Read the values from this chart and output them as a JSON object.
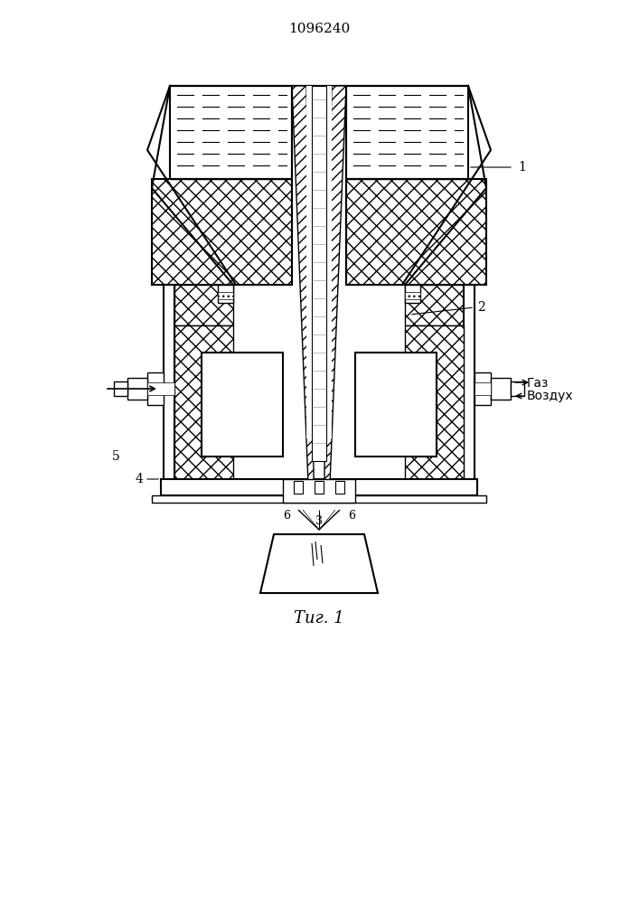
{
  "title": "1096240",
  "fig_label": "Τиг. 1",
  "bg_color": "#ffffff",
  "line_color": "#000000",
  "label_1": "1",
  "label_2": "2",
  "label_3": "3",
  "label_4": "4",
  "label_5": "5",
  "label_6a": "6",
  "label_6b": "6",
  "label_gas": "Газ",
  "label_air": "Воздух",
  "figsize": [
    7.07,
    10.0
  ],
  "dpi": 100
}
